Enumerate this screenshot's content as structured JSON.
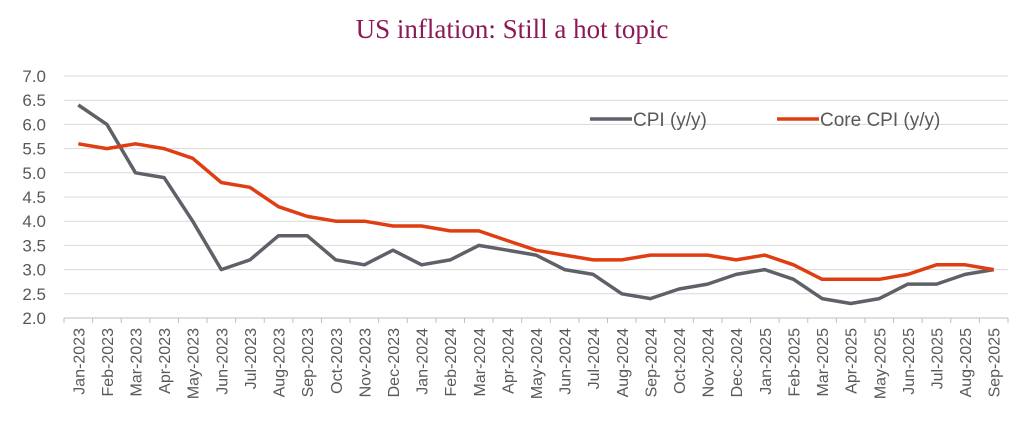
{
  "chart_data": {
    "type": "line",
    "title": "US inflation: Still a hot topic",
    "xlabel": "",
    "ylabel": "",
    "ylim": [
      2.0,
      7.0
    ],
    "yticks": [
      "2.0",
      "2.5",
      "3.0",
      "3.5",
      "4.0",
      "4.5",
      "5.0",
      "5.5",
      "6.0",
      "6.5",
      "7.0"
    ],
    "grid": true,
    "legend_position": "top-right",
    "categories": [
      "Jan-2023",
      "Feb-2023",
      "Mar-2023",
      "Apr-2023",
      "May-2023",
      "Jun-2023",
      "Jul-2023",
      "Aug-2023",
      "Sep-2023",
      "Oct-2023",
      "Nov-2023",
      "Dec-2023",
      "Jan-2024",
      "Feb-2024",
      "Mar-2024",
      "Apr-2024",
      "May-2024",
      "Jun-2024",
      "Jul-2024",
      "Aug-2024",
      "Sep-2024",
      "Oct-2024",
      "Nov-2024",
      "Dec-2024",
      "Jan-2025",
      "Feb-2025",
      "Mar-2025",
      "Apr-2025",
      "May-2025",
      "Jun-2025",
      "Jul-2025",
      "Aug-2025",
      "Sep-2025"
    ],
    "series": [
      {
        "name": "CPI (y/y)",
        "color": "#5f6168",
        "values": [
          6.4,
          6.0,
          5.0,
          4.9,
          4.0,
          3.0,
          3.2,
          3.7,
          3.7,
          3.2,
          3.1,
          3.4,
          3.1,
          3.2,
          3.5,
          3.4,
          3.3,
          3.0,
          2.9,
          2.5,
          2.4,
          2.6,
          2.7,
          2.9,
          3.0,
          2.8,
          2.4,
          2.3,
          2.4,
          2.7,
          2.7,
          2.9,
          3.0
        ]
      },
      {
        "name": "Core CPI (y/y)",
        "color": "#de3e12",
        "values": [
          5.6,
          5.5,
          5.6,
          5.5,
          5.3,
          4.8,
          4.7,
          4.3,
          4.1,
          4.0,
          4.0,
          3.9,
          3.9,
          3.8,
          3.8,
          3.6,
          3.4,
          3.3,
          3.2,
          3.2,
          3.3,
          3.3,
          3.3,
          3.2,
          3.3,
          3.1,
          2.8,
          2.8,
          2.8,
          2.9,
          3.1,
          3.1,
          3.0
        ]
      }
    ]
  }
}
